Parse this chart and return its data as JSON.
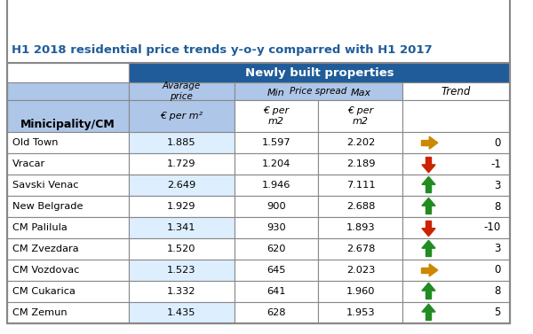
{
  "title": "H1 2018 residential price trends y-o-y comparred with H1 2017",
  "header1": "Newly built properties",
  "rows": [
    {
      "name": "Old Town",
      "avg": "1.885",
      "min": "1.597",
      "max": "2.202",
      "trend_val": "0",
      "arrow": "right",
      "arrow_color": "#CC8800"
    },
    {
      "name": "Vracar",
      "avg": "1.729",
      "min": "1.204",
      "max": "2.189",
      "trend_val": "-1",
      "arrow": "down",
      "arrow_color": "#CC2200"
    },
    {
      "name": "Savski Venac",
      "avg": "2.649",
      "min": "1.946",
      "max": "7.111",
      "trend_val": "3",
      "arrow": "up",
      "arrow_color": "#228B22"
    },
    {
      "name": "New Belgrade",
      "avg": "1.929",
      "min": "900",
      "max": "2.688",
      "trend_val": "8",
      "arrow": "up",
      "arrow_color": "#228B22"
    },
    {
      "name": "CM Palilula",
      "avg": "1.341",
      "min": "930",
      "max": "1.893",
      "trend_val": "-10",
      "arrow": "down",
      "arrow_color": "#CC2200"
    },
    {
      "name": "CM Zvezdara",
      "avg": "1.520",
      "min": "620",
      "max": "2.678",
      "trend_val": "3",
      "arrow": "up",
      "arrow_color": "#228B22"
    },
    {
      "name": "CM Vozdovac",
      "avg": "1.523",
      "min": "645",
      "max": "2.023",
      "trend_val": "0",
      "arrow": "right",
      "arrow_color": "#CC8800"
    },
    {
      "name": "CM Cukarica",
      "avg": "1.332",
      "min": "641",
      "max": "1.960",
      "trend_val": "8",
      "arrow": "up",
      "arrow_color": "#228B22"
    },
    {
      "name": "CM Zemun",
      "avg": "1.435",
      "min": "628",
      "max": "1.953",
      "trend_val": "5",
      "arrow": "up",
      "arrow_color": "#228B22"
    }
  ],
  "title_color": "#1F5C99",
  "header_bg": "#1F5C99",
  "subheader_bg": "#AEC6E8",
  "row_bg_odd": "#DDEEFF",
  "row_bg_even": "#FFFFFF",
  "border_color": "#888888"
}
